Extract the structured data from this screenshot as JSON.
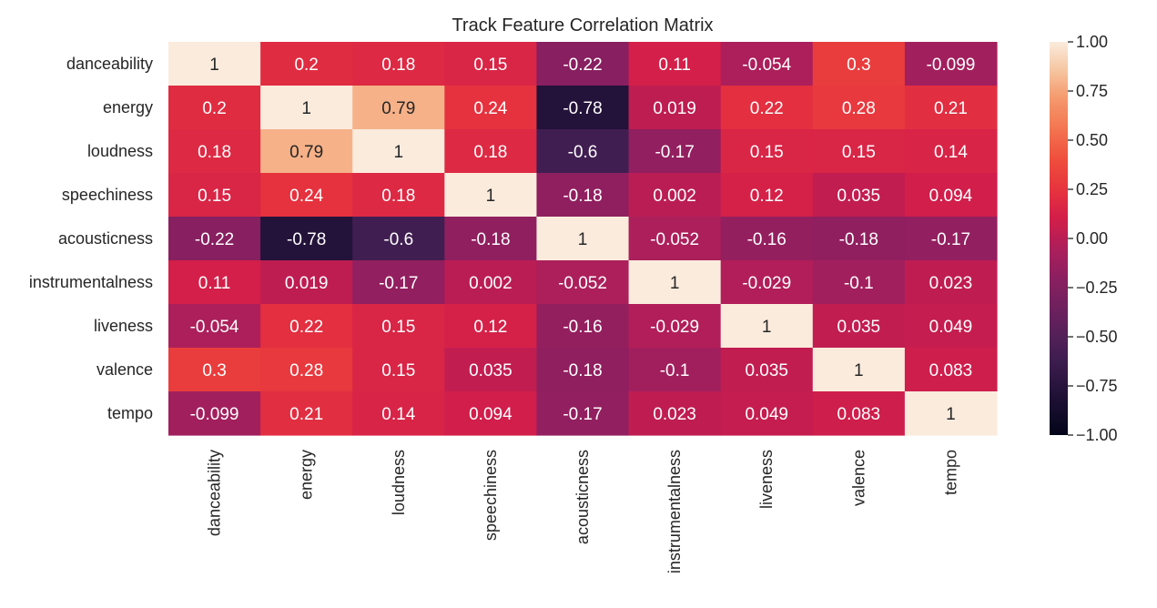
{
  "chart_data": {
    "type": "heatmap",
    "title": "Track Feature Correlation Matrix",
    "xlabel": "",
    "ylabel": "",
    "rows": [
      "danceability",
      "energy",
      "loudness",
      "speechiness",
      "acousticness",
      "instrumentalness",
      "liveness",
      "valence",
      "tempo"
    ],
    "columns": [
      "danceability",
      "energy",
      "loudness",
      "speechiness",
      "acousticness",
      "instrumentalness",
      "liveness",
      "valence",
      "tempo"
    ],
    "values": [
      [
        1,
        0.2,
        0.18,
        0.15,
        -0.22,
        0.11,
        -0.054,
        0.3,
        -0.099
      ],
      [
        0.2,
        1,
        0.79,
        0.24,
        -0.78,
        0.019,
        0.22,
        0.28,
        0.21
      ],
      [
        0.18,
        0.79,
        1,
        0.18,
        -0.6,
        -0.17,
        0.15,
        0.15,
        0.14
      ],
      [
        0.15,
        0.24,
        0.18,
        1,
        -0.18,
        0.002,
        0.12,
        0.035,
        0.094
      ],
      [
        -0.22,
        -0.78,
        -0.6,
        -0.18,
        1,
        -0.052,
        -0.16,
        -0.18,
        -0.17
      ],
      [
        0.11,
        0.019,
        -0.17,
        0.002,
        -0.052,
        1,
        -0.029,
        -0.1,
        0.023
      ],
      [
        -0.054,
        0.22,
        0.15,
        0.12,
        -0.16,
        -0.029,
        1,
        0.035,
        0.049
      ],
      [
        0.3,
        0.28,
        0.15,
        0.035,
        -0.18,
        -0.1,
        0.035,
        1,
        0.083
      ],
      [
        -0.099,
        0.21,
        0.14,
        0.094,
        -0.17,
        0.023,
        0.049,
        0.083,
        1
      ]
    ],
    "labels": [
      [
        "1",
        "0.2",
        "0.18",
        "0.15",
        "-0.22",
        "0.11",
        "-0.054",
        "0.3",
        "-0.099"
      ],
      [
        "0.2",
        "1",
        "0.79",
        "0.24",
        "-0.78",
        "0.019",
        "0.22",
        "0.28",
        "0.21"
      ],
      [
        "0.18",
        "0.79",
        "1",
        "0.18",
        "-0.6",
        "-0.17",
        "0.15",
        "0.15",
        "0.14"
      ],
      [
        "0.15",
        "0.24",
        "0.18",
        "1",
        "-0.18",
        "0.002",
        "0.12",
        "0.035",
        "0.094"
      ],
      [
        "-0.22",
        "-0.78",
        "-0.6",
        "-0.18",
        "1",
        "-0.052",
        "-0.16",
        "-0.18",
        "-0.17"
      ],
      [
        "0.11",
        "0.019",
        "-0.17",
        "0.002",
        "-0.052",
        "1",
        "-0.029",
        "-0.1",
        "0.023"
      ],
      [
        "-0.054",
        "0.22",
        "0.15",
        "0.12",
        "-0.16",
        "-0.029",
        "1",
        "0.035",
        "0.049"
      ],
      [
        "0.3",
        "0.28",
        "0.15",
        "0.035",
        "-0.18",
        "-0.1",
        "0.035",
        "1",
        "0.083"
      ],
      [
        "-0.099",
        "0.21",
        "0.14",
        "0.094",
        "-0.17",
        "0.023",
        "0.049",
        "0.083",
        "1"
      ]
    ],
    "vmin": -1.0,
    "vmax": 1.0,
    "colormap": "rocket",
    "colorbar": {
      "ticks": [
        1.0,
        0.75,
        0.5,
        0.25,
        0.0,
        -0.25,
        -0.5,
        -0.75,
        -1.0
      ],
      "tick_labels": [
        "1.00",
        "0.75",
        "0.50",
        "0.25",
        "0.00",
        "−0.25",
        "−0.50",
        "−0.75",
        "−1.00"
      ],
      "placement": "right"
    },
    "grid": false
  }
}
